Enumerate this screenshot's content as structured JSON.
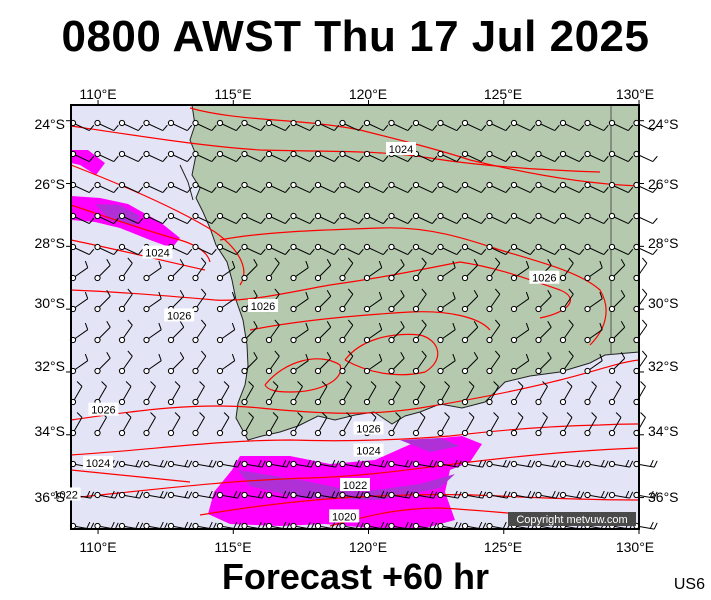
{
  "header": {
    "title": "0800 AWST Thu 17 Jul 2025"
  },
  "footer": {
    "forecast": "Forecast +60 hr",
    "code": "US6"
  },
  "copyright": "Copyright metvuw.com",
  "map": {
    "lon_range": [
      109,
      130
    ],
    "lat_range": [
      -37,
      -23.5
    ],
    "lon_ticks": [
      "110°E",
      "115°E",
      "120°E",
      "125°E",
      "130°E"
    ],
    "lat_ticks": [
      "24°S",
      "26°S",
      "28°S",
      "30°S",
      "32°S",
      "34°S",
      "36°S"
    ],
    "colors": {
      "ocean": "#e4e4f7",
      "land": "#b4c9ae",
      "isobar": "#ff0000",
      "rain_light": "#ff00ff",
      "rain_heavy": "#b030d8"
    }
  },
  "isobar_labels": [
    {
      "text": "1024",
      "lon": 121.2,
      "lat": -24.9
    },
    {
      "text": "1024",
      "lon": 112.2,
      "lat": -28.2
    },
    {
      "text": "1026",
      "lon": 113.0,
      "lat": -30.2
    },
    {
      "text": "1026",
      "lon": 126.5,
      "lat": -29.0
    },
    {
      "text": "1026",
      "lon": 116.1,
      "lat": -29.9
    },
    {
      "text": "1026",
      "lon": 110.2,
      "lat": -33.2
    },
    {
      "text": "1026",
      "lon": 120.0,
      "lat": -33.8
    },
    {
      "text": "1024",
      "lon": 110.0,
      "lat": -34.9
    },
    {
      "text": "1024",
      "lon": 120.0,
      "lat": -34.5
    },
    {
      "text": "1022",
      "lon": 108.8,
      "lat": -35.9
    },
    {
      "text": "1022",
      "lon": 119.5,
      "lat": -35.6
    },
    {
      "text": "1020",
      "lon": 119.1,
      "lat": -36.6
    }
  ]
}
